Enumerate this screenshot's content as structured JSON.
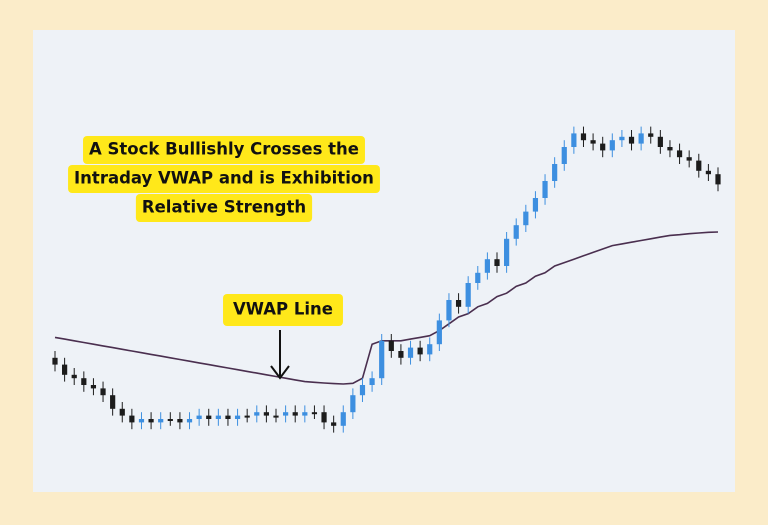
{
  "chart_data": {
    "type": "candlestick",
    "annotation_lines": [
      "A Stock Bullishly Crosses the",
      "Intraday VWAP and is Exhibition",
      "Relative Strength"
    ],
    "vwap_label": "VWAP Line",
    "up_color": "#3d8fe0",
    "down_color": "#1c1c1c",
    "vwap_color": "#4a2f4f",
    "ylim": [
      0,
      100
    ],
    "open": [
      33,
      31,
      28,
      27,
      25,
      24,
      22,
      18,
      16,
      14,
      15,
      14,
      15,
      15,
      14,
      15,
      16,
      15,
      16,
      15,
      16,
      16,
      17,
      16,
      16,
      17,
      16,
      17,
      17,
      14,
      13,
      17,
      22,
      25,
      27,
      38,
      35,
      33,
      36,
      34,
      37,
      44,
      50,
      48,
      55,
      58,
      62,
      60,
      68,
      72,
      76,
      80,
      85,
      90,
      95,
      99,
      97,
      96,
      94,
      97,
      98,
      96,
      99,
      98,
      95,
      94,
      92,
      91,
      88,
      87
    ],
    "close": [
      31,
      28,
      27,
      25,
      24,
      22,
      18,
      16,
      14,
      15,
      14,
      15,
      15,
      14,
      15,
      16,
      15,
      16,
      15,
      16,
      16,
      17,
      16,
      16,
      17,
      16,
      17,
      17,
      14,
      13,
      17,
      22,
      25,
      27,
      38,
      35,
      33,
      36,
      34,
      37,
      44,
      50,
      48,
      55,
      58,
      62,
      60,
      68,
      72,
      76,
      80,
      85,
      90,
      95,
      99,
      97,
      96,
      94,
      97,
      98,
      96,
      99,
      98,
      95,
      94,
      92,
      91,
      88,
      87,
      84
    ],
    "high": [
      35,
      33,
      30,
      29,
      27,
      26,
      24,
      20,
      18,
      17,
      17,
      17,
      17,
      17,
      17,
      18,
      18,
      18,
      18,
      18,
      18,
      19,
      19,
      18,
      19,
      19,
      19,
      19,
      19,
      16,
      19,
      24,
      27,
      29,
      40,
      40,
      37,
      38,
      38,
      39,
      46,
      52,
      52,
      57,
      60,
      64,
      64,
      70,
      74,
      78,
      82,
      87,
      92,
      97,
      101,
      101,
      99,
      98,
      99,
      100,
      100,
      101,
      101,
      100,
      97,
      96,
      94,
      93,
      90,
      89
    ],
    "low": [
      29,
      26,
      25,
      23,
      22,
      20,
      16,
      14,
      12,
      12,
      12,
      12,
      13,
      12,
      12,
      13,
      13,
      13,
      13,
      13,
      14,
      14,
      14,
      14,
      14,
      14,
      14,
      15,
      12,
      11,
      11,
      15,
      20,
      23,
      25,
      33,
      31,
      31,
      32,
      32,
      35,
      42,
      46,
      46,
      53,
      56,
      58,
      58,
      66,
      70,
      74,
      78,
      83,
      88,
      93,
      95,
      94,
      92,
      92,
      95,
      94,
      94,
      96,
      93,
      92,
      90,
      89,
      86,
      85,
      82
    ],
    "vwap": [
      39,
      38.5,
      38,
      37.5,
      37,
      36.5,
      36,
      35.5,
      35,
      34.5,
      34,
      33.5,
      33,
      32.5,
      32,
      31.5,
      31,
      30.5,
      30,
      29.5,
      29,
      28.5,
      28,
      27.5,
      27,
      26.5,
      26,
      25.8,
      25.6,
      25.4,
      25.3,
      25.5,
      27,
      37,
      38,
      38,
      38,
      38.5,
      39,
      39.5,
      41,
      43,
      45,
      46,
      48,
      49,
      51,
      52,
      54,
      55,
      57,
      58,
      60,
      61,
      62,
      63,
      64,
      65,
      66,
      66.5,
      67,
      67.5,
      68,
      68.5,
      69,
      69.2,
      69.5,
      69.7,
      69.9,
      70
    ]
  }
}
